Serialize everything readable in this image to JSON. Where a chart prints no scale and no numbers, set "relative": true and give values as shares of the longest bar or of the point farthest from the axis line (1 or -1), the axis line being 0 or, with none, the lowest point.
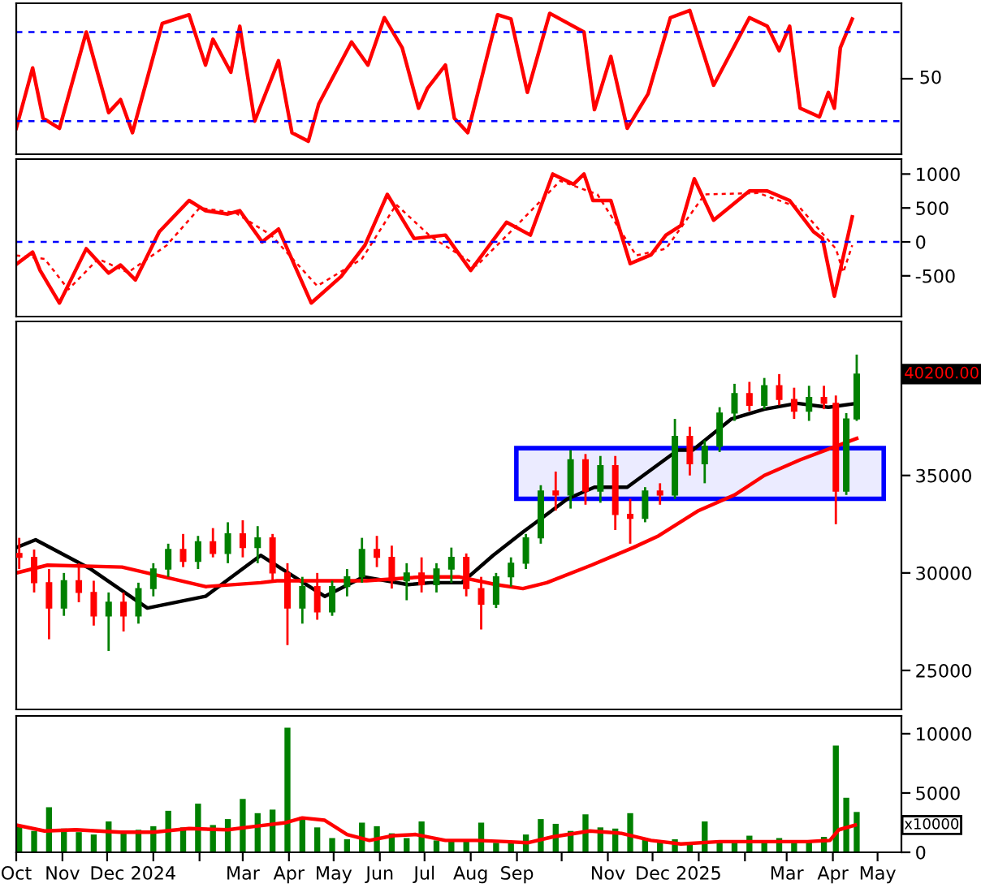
{
  "chart_data": [
    {
      "type": "line",
      "relative": true,
      "xlim": [
        "2023-10-01",
        "2025-05-17"
      ],
      "tick_labels": false,
      "grid": false,
      "legend": false,
      "annotations": [
        "50"
      ],
      "ref_lines": [
        {
          "axis": "y",
          "value": 0.85,
          "color": "#0000ff",
          "line_style": "dashed"
        },
        {
          "axis": "y",
          "value": 0.23,
          "color": "#0000ff",
          "line_style": "dashed"
        }
      ],
      "series": [
        {
          "color": "#ff0000",
          "line_style": "solid",
          "x": [
            "2023-10-01",
            "2023-10-12",
            "2023-10-19",
            "2023-10-30",
            "2023-11-17",
            "2023-12-02",
            "2023-12-10",
            "2023-12-18",
            "2024-01-07",
            "2024-01-25",
            "2024-02-05",
            "2024-02-10",
            "2024-02-22",
            "2024-02-28",
            "2024-03-09",
            "2024-03-25",
            "2024-04-03",
            "2024-04-14",
            "2024-04-21",
            "2024-05-13",
            "2024-05-24",
            "2024-06-04",
            "2024-06-16",
            "2024-06-27",
            "2024-07-03",
            "2024-07-15",
            "2024-07-21",
            "2024-07-30",
            "2024-08-19",
            "2024-08-28",
            "2024-09-08",
            "2024-09-23",
            "2024-10-16",
            "2024-10-23",
            "2024-11-03",
            "2024-11-14",
            "2024-11-28",
            "2024-12-13",
            "2024-12-26",
            "2025-01-11",
            "2025-02-04",
            "2025-02-16",
            "2025-02-24",
            "2025-03-03",
            "2025-03-10",
            "2025-03-23",
            "2025-03-29",
            "2025-04-02",
            "2025-04-06",
            "2025-04-14"
          ],
          "values": [
            0.18,
            0.6,
            0.25,
            0.18,
            0.85,
            0.29,
            0.38,
            0.15,
            0.91,
            0.97,
            0.62,
            0.8,
            0.57,
            0.89,
            0.23,
            0.65,
            0.15,
            0.09,
            0.35,
            0.78,
            0.62,
            0.95,
            0.74,
            0.32,
            0.46,
            0.62,
            0.25,
            0.15,
            0.97,
            0.94,
            0.43,
            0.98,
            0.85,
            0.31,
            0.68,
            0.18,
            0.42,
            0.95,
            1,
            0.48,
            0.95,
            0.89,
            0.72,
            0.89,
            0.32,
            0.26,
            0.43,
            0.32,
            0.74,
            0.94
          ]
        }
      ]
    },
    {
      "type": "line",
      "xlim": [
        "2023-10-01",
        "2025-05-17"
      ],
      "ylim": [
        -1100,
        1220
      ],
      "yticks": [
        -500,
        0,
        500,
        1000
      ],
      "tick_labels": "y",
      "grid": false,
      "legend": false,
      "ref_lines": [
        {
          "axis": "y",
          "value": 0,
          "color": "#0000ff",
          "line_style": "dashed"
        }
      ],
      "series": [
        {
          "color": "#ff0000",
          "line_style": "solid",
          "x": [
            "2023-10-01",
            "2023-10-12",
            "2023-10-17",
            "2023-10-30",
            "2023-11-17",
            "2023-12-02",
            "2023-12-10",
            "2023-12-20",
            "2024-01-05",
            "2024-01-25",
            "2024-02-05",
            "2024-02-20",
            "2024-02-28",
            "2024-03-14",
            "2024-03-25",
            "2024-04-16",
            "2024-05-06",
            "2024-05-22",
            "2024-06-06",
            "2024-06-24",
            "2024-07-15",
            "2024-08-01",
            "2024-08-25",
            "2024-09-10",
            "2024-09-25",
            "2024-10-09",
            "2024-10-16",
            "2024-10-22",
            "2024-11-03",
            "2024-11-16",
            "2024-11-30",
            "2024-12-10",
            "2024-12-20",
            "2024-12-29",
            "2025-01-11",
            "2025-02-04",
            "2025-02-16",
            "2025-03-03",
            "2025-03-19",
            "2025-03-25",
            "2025-04-02",
            "2025-04-14"
          ],
          "values": [
            -330,
            -150,
            -420,
            -900,
            -100,
            -460,
            -340,
            -560,
            150,
            610,
            460,
            410,
            460,
            0,
            190,
            -900,
            -510,
            -50,
            700,
            50,
            100,
            -420,
            290,
            100,
            1000,
            850,
            1000,
            610,
            610,
            -320,
            -190,
            100,
            240,
            930,
            320,
            750,
            750,
            610,
            150,
            50,
            -800,
            370
          ]
        },
        {
          "color": "#ff0000",
          "line_style": "dotted",
          "x": [
            "2023-10-01",
            "2023-10-20",
            "2023-11-05",
            "2023-11-25",
            "2023-12-15",
            "2024-01-10",
            "2024-02-01",
            "2024-02-25",
            "2024-03-20",
            "2024-04-20",
            "2024-05-20",
            "2024-06-12",
            "2024-07-05",
            "2024-08-05",
            "2024-08-30",
            "2024-09-30",
            "2024-10-25",
            "2024-11-20",
            "2024-12-10",
            "2025-01-05",
            "2025-02-10",
            "2025-03-10",
            "2025-04-03",
            "2025-04-08",
            "2025-04-14"
          ],
          "values": [
            -200,
            -250,
            -700,
            -250,
            -450,
            -50,
            500,
            430,
            100,
            -650,
            -250,
            550,
            80,
            -350,
            200,
            900,
            700,
            -200,
            -100,
            700,
            720,
            500,
            -100,
            -450,
            -50
          ]
        }
      ]
    },
    {
      "type": "candlestick",
      "xlim": [
        "2023-10-01",
        "2025-05-17"
      ],
      "ylim": [
        23000,
        42900
      ],
      "yticks": [
        25000,
        30000,
        35000
      ],
      "tick_labels": "y",
      "grid": false,
      "legend": false,
      "bands": [
        {
          "axis": "y",
          "from": 33800,
          "to": 36400,
          "color": "#0000ff"
        }
      ],
      "annotations": [
        "40200.00"
      ],
      "series": [
        {
          "x": [
            "2023-10-03",
            "2023-10-13",
            "2023-10-23",
            "2023-11-02",
            "2023-11-12",
            "2023-11-22",
            "2023-12-02",
            "2023-12-12",
            "2023-12-22",
            "2024-01-01",
            "2024-01-11",
            "2024-01-21",
            "2024-01-31",
            "2024-02-10",
            "2024-02-20",
            "2024-03-01",
            "2024-03-11",
            "2024-03-21",
            "2024-03-31",
            "2024-04-10",
            "2024-04-20",
            "2024-04-30",
            "2024-05-10",
            "2024-05-20",
            "2024-05-30",
            "2024-06-09",
            "2024-06-19",
            "2024-06-29",
            "2024-07-09",
            "2024-07-19",
            "2024-07-29",
            "2024-08-08",
            "2024-08-18",
            "2024-08-28",
            "2024-09-07",
            "2024-09-17",
            "2024-09-27",
            "2024-10-07",
            "2024-10-17",
            "2024-10-27",
            "2024-11-06",
            "2024-11-16",
            "2024-11-26",
            "2024-12-06",
            "2024-12-16",
            "2024-12-26",
            "2025-01-05",
            "2025-01-15",
            "2025-01-25",
            "2025-02-04",
            "2025-02-14",
            "2025-02-24",
            "2025-03-06",
            "2025-03-16",
            "2025-03-26",
            "2025-04-03",
            "2025-04-10",
            "2025-04-17"
          ],
          "ohlc": [
            [
              31000,
              31800,
              30200,
              30800
            ],
            [
              30800,
              31200,
              29000,
              29500
            ],
            [
              29500,
              30200,
              26600,
              28200
            ],
            [
              28200,
              30000,
              27800,
              29600
            ],
            [
              29600,
              30500,
              28500,
              29000
            ],
            [
              29000,
              29600,
              27300,
              27800
            ],
            [
              27800,
              29000,
              26000,
              28500
            ],
            [
              28500,
              29000,
              27000,
              27800
            ],
            [
              27800,
              29500,
              27400,
              29200
            ],
            [
              29200,
              30500,
              28800,
              30200
            ],
            [
              30200,
              31500,
              29800,
              31200
            ],
            [
              31200,
              32000,
              30300,
              30600
            ],
            [
              30600,
              31900,
              30200,
              31600
            ],
            [
              31600,
              32300,
              30800,
              31000
            ],
            [
              31000,
              32600,
              30500,
              32000
            ],
            [
              32000,
              32700,
              30800,
              31300
            ],
            [
              31300,
              32400,
              30500,
              31800
            ],
            [
              31800,
              32000,
              29500,
              30000
            ],
            [
              30000,
              30500,
              26300,
              28200
            ],
            [
              28200,
              29800,
              27400,
              29300
            ],
            [
              29300,
              30000,
              27600,
              28000
            ],
            [
              28000,
              29600,
              27800,
              29300
            ],
            [
              29300,
              30200,
              28800,
              29800
            ],
            [
              29800,
              31800,
              29500,
              31200
            ],
            [
              31200,
              31900,
              30300,
              30800
            ],
            [
              30800,
              31400,
              29200,
              29600
            ],
            [
              29600,
              30500,
              28600,
              30000
            ],
            [
              30000,
              30800,
              29000,
              29400
            ],
            [
              29400,
              30500,
              29000,
              30200
            ],
            [
              30200,
              31300,
              29500,
              30800
            ],
            [
              30800,
              31000,
              28800,
              29200
            ],
            [
              29200,
              29800,
              27100,
              28400
            ],
            [
              28400,
              30000,
              28200,
              29800
            ],
            [
              29800,
              30800,
              29300,
              30500
            ],
            [
              30500,
              32000,
              30200,
              31800
            ],
            [
              31800,
              34500,
              31500,
              34200
            ],
            [
              34200,
              35200,
              33200,
              34000
            ],
            [
              34000,
              36300,
              33300,
              35800
            ],
            [
              35800,
              36100,
              33500,
              34200
            ],
            [
              34200,
              36000,
              33600,
              35500
            ],
            [
              35500,
              36000,
              32200,
              33000
            ],
            [
              33000,
              33800,
              31500,
              32800
            ],
            [
              32800,
              34400,
              32600,
              34200
            ],
            [
              34200,
              34600,
              33500,
              34000
            ],
            [
              34000,
              37900,
              33800,
              37000
            ],
            [
              37000,
              37500,
              35000,
              35600
            ],
            [
              35600,
              36800,
              34600,
              36500
            ],
            [
              36500,
              38500,
              36200,
              38200
            ],
            [
              38200,
              39700,
              37800,
              39200
            ],
            [
              39200,
              39800,
              38300,
              38600
            ],
            [
              38600,
              40000,
              38400,
              39600
            ],
            [
              39600,
              40200,
              38600,
              38900
            ],
            [
              38900,
              39500,
              37900,
              38300
            ],
            [
              38300,
              39600,
              37800,
              39000
            ],
            [
              39000,
              39600,
              38400,
              38700
            ],
            [
              38700,
              39100,
              32500,
              34200
            ],
            [
              34200,
              38200,
              34000,
              37900
            ],
            [
              37900,
              41200,
              37800,
              40200
            ]
          ],
          "colors": [
            "#ff0000",
            "#ff0000",
            "#ff0000",
            "#008000",
            "#ff0000",
            "#ff0000",
            "#008000",
            "#ff0000",
            "#008000",
            "#008000",
            "#008000",
            "#ff0000",
            "#008000",
            "#ff0000",
            "#008000",
            "#ff0000",
            "#008000",
            "#ff0000",
            "#ff0000",
            "#008000",
            "#ff0000",
            "#008000",
            "#008000",
            "#008000",
            "#ff0000",
            "#ff0000",
            "#008000",
            "#ff0000",
            "#008000",
            "#008000",
            "#ff0000",
            "#ff0000",
            "#008000",
            "#008000",
            "#008000",
            "#008000",
            "#ff0000",
            "#008000",
            "#ff0000",
            "#008000",
            "#ff0000",
            "#ff0000",
            "#008000",
            "#ff0000",
            "#008000",
            "#ff0000",
            "#008000",
            "#008000",
            "#008000",
            "#ff0000",
            "#008000",
            "#ff0000",
            "#ff0000",
            "#008000",
            "#ff0000",
            "#ff0000",
            "#008000",
            "#008000"
          ]
        },
        {
          "type": "line",
          "color": "#000000",
          "line_style": "solid",
          "x": [
            "2023-10-01",
            "2023-10-14",
            "2023-11-20",
            "2023-12-28",
            "2024-02-05",
            "2024-03-13",
            "2024-04-25",
            "2024-05-21",
            "2024-06-20",
            "2024-07-05",
            "2024-07-26",
            "2024-08-16",
            "2024-09-05",
            "2024-09-21",
            "2024-10-05",
            "2024-10-23",
            "2024-11-14",
            "2024-12-18",
            "2024-12-28",
            "2025-01-23",
            "2025-02-14",
            "2025-03-08",
            "2025-03-29",
            "2025-04-17"
          ],
          "values": [
            31300,
            31700,
            30200,
            28200,
            28800,
            30900,
            28800,
            29800,
            29400,
            29500,
            29500,
            30900,
            32100,
            33000,
            33800,
            34400,
            34400,
            36300,
            36300,
            37900,
            38400,
            38700,
            38500,
            38700
          ]
        },
        {
          "type": "line",
          "color": "#ff0000",
          "line_style": "solid",
          "x": [
            "2023-10-01",
            "2023-10-22",
            "2023-12-11",
            "2024-02-05",
            "2024-03-13",
            "2024-03-24",
            "2024-05-23",
            "2024-06-30",
            "2024-07-24",
            "2024-08-18",
            "2024-09-05",
            "2024-09-21",
            "2024-10-21",
            "2024-11-18",
            "2024-12-05",
            "2025-01-01",
            "2025-01-25",
            "2025-02-14",
            "2025-03-10",
            "2025-04-17"
          ],
          "values": [
            30000,
            30400,
            30300,
            29300,
            29500,
            29600,
            29600,
            29800,
            29800,
            29400,
            29200,
            29500,
            30400,
            31300,
            31900,
            33200,
            34000,
            35000,
            35800,
            36900
          ]
        }
      ]
    },
    {
      "type": "bar",
      "xlim": [
        "2023-10-01",
        "2025-05-17"
      ],
      "ylim": [
        0,
        11500
      ],
      "yticks": [
        0,
        5000,
        10000
      ],
      "grid": false,
      "legend": false,
      "xticks": [
        {
          "value": "2023-10-01",
          "label": "Oct"
        },
        {
          "value": "2023-11-01",
          "label": "Nov"
        },
        {
          "value": "2023-12-01",
          "label": "Dec"
        },
        {
          "value": "2024-01-01",
          "label": "2024"
        },
        {
          "value": "2024-02-01",
          "label": null
        },
        {
          "value": "2024-03-01",
          "label": "Mar"
        },
        {
          "value": "2024-04-01",
          "label": "Apr"
        },
        {
          "value": "2024-05-01",
          "label": "May"
        },
        {
          "value": "2024-06-01",
          "label": "Jun"
        },
        {
          "value": "2024-07-01",
          "label": "Jul"
        },
        {
          "value": "2024-08-01",
          "label": "Aug"
        },
        {
          "value": "2024-09-01",
          "label": "Sep"
        },
        {
          "value": "2024-10-01",
          "label": null
        },
        {
          "value": "2024-11-01",
          "label": "Nov"
        },
        {
          "value": "2024-12-01",
          "label": "Dec"
        },
        {
          "value": "2025-01-01",
          "label": "2025"
        },
        {
          "value": "2025-02-01",
          "label": null
        },
        {
          "value": "2025-03-01",
          "label": "Mar"
        },
        {
          "value": "2025-04-01",
          "label": "Apr"
        },
        {
          "value": "2025-05-01",
          "label": "May"
        }
      ],
      "annotations": [
        "x10000"
      ],
      "series": [
        {
          "color": "#008000",
          "x": [
            "2023-10-03",
            "2023-10-13",
            "2023-10-23",
            "2023-11-02",
            "2023-11-12",
            "2023-11-22",
            "2023-12-02",
            "2023-12-12",
            "2023-12-22",
            "2024-01-01",
            "2024-01-11",
            "2024-01-21",
            "2024-01-31",
            "2024-02-10",
            "2024-02-20",
            "2024-03-01",
            "2024-03-11",
            "2024-03-21",
            "2024-03-31",
            "2024-04-10",
            "2024-04-20",
            "2024-04-30",
            "2024-05-10",
            "2024-05-20",
            "2024-05-30",
            "2024-06-09",
            "2024-06-19",
            "2024-06-29",
            "2024-07-09",
            "2024-07-19",
            "2024-07-29",
            "2024-08-08",
            "2024-08-18",
            "2024-08-28",
            "2024-09-07",
            "2024-09-17",
            "2024-09-27",
            "2024-10-07",
            "2024-10-17",
            "2024-10-27",
            "2024-11-06",
            "2024-11-16",
            "2024-11-26",
            "2024-12-06",
            "2024-12-16",
            "2024-12-26",
            "2025-01-05",
            "2025-01-15",
            "2025-01-25",
            "2025-02-04",
            "2025-02-14",
            "2025-02-24",
            "2025-03-06",
            "2025-03-16",
            "2025-03-26",
            "2025-04-03",
            "2025-04-10",
            "2025-04-17"
          ],
          "values": [
            2200,
            1800,
            3800,
            2000,
            1700,
            1500,
            2600,
            1600,
            1900,
            2200,
            3500,
            2100,
            4100,
            2300,
            2800,
            4500,
            3300,
            3600,
            10500,
            3000,
            2100,
            1200,
            1100,
            2500,
            2200,
            1600,
            1200,
            2600,
            1000,
            900,
            1000,
            2500,
            800,
            900,
            1500,
            2800,
            2400,
            1800,
            3200,
            2100,
            2000,
            3300,
            1200,
            900,
            1100,
            800,
            2600,
            1000,
            900,
            1400,
            800,
            1200,
            1000,
            900,
            1300,
            9000,
            4600,
            3400
          ]
        },
        {
          "type": "line",
          "color": "#ff0000",
          "line_style": "solid",
          "x": [
            "2023-10-01",
            "2023-10-20",
            "2023-11-10",
            "2023-12-10",
            "2024-01-01",
            "2024-01-25",
            "2024-02-20",
            "2024-03-10",
            "2024-03-30",
            "2024-04-10",
            "2024-04-25",
            "2024-05-10",
            "2024-05-25",
            "2024-06-10",
            "2024-06-25",
            "2024-07-15",
            "2024-08-05",
            "2024-08-25",
            "2024-09-08",
            "2024-09-25",
            "2024-10-20",
            "2024-11-10",
            "2024-11-30",
            "2024-12-20",
            "2025-01-15",
            "2025-02-15",
            "2025-03-15",
            "2025-03-30",
            "2025-04-05",
            "2025-04-16"
          ],
          "values": [
            2300,
            1800,
            1900,
            1700,
            1700,
            2000,
            1900,
            2200,
            2500,
            2900,
            2700,
            1500,
            1000,
            1400,
            1500,
            1000,
            1000,
            900,
            800,
            1300,
            1800,
            1600,
            1000,
            700,
            900,
            900,
            900,
            1000,
            1900,
            2300
          ]
        }
      ]
    }
  ]
}
